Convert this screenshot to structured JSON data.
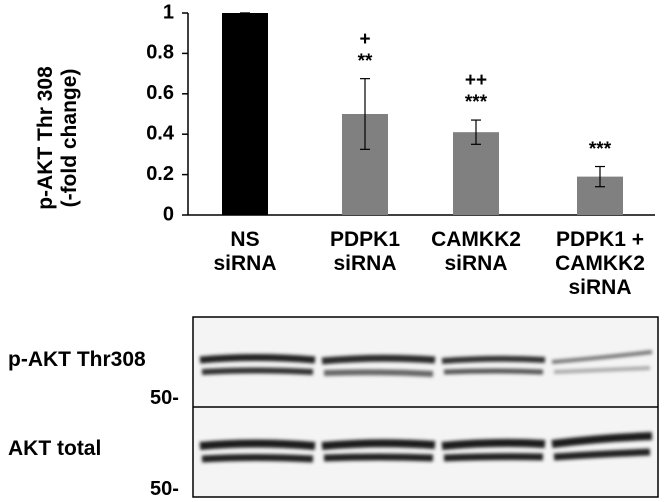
{
  "chart_data": {
    "type": "bar",
    "ylabel": "p-AKT Thr 308\n(-fold change)",
    "categories": [
      "NS\nsiRNA",
      "PDPK1\nsiRNA",
      "CAMKK2\nsiRNA",
      "PDPK1 +\nCAMKK2\nsiRNA"
    ],
    "values": [
      1.0,
      0.5,
      0.41,
      0.19
    ],
    "errors": [
      0,
      0.175,
      0.06,
      0.05
    ],
    "annotations": [
      null,
      "+\n**",
      "++\n***",
      "***"
    ],
    "colors": [
      "#000000",
      "#808080",
      "#808080",
      "#808080"
    ],
    "ylim": [
      0,
      1
    ],
    "yticks": [
      0,
      0.2,
      0.4,
      0.6,
      0.8,
      1
    ]
  },
  "blot": {
    "rows": [
      {
        "label": "p-AKT Thr308",
        "marker": "50-"
      },
      {
        "label": "AKT total",
        "marker": "50-"
      }
    ]
  }
}
